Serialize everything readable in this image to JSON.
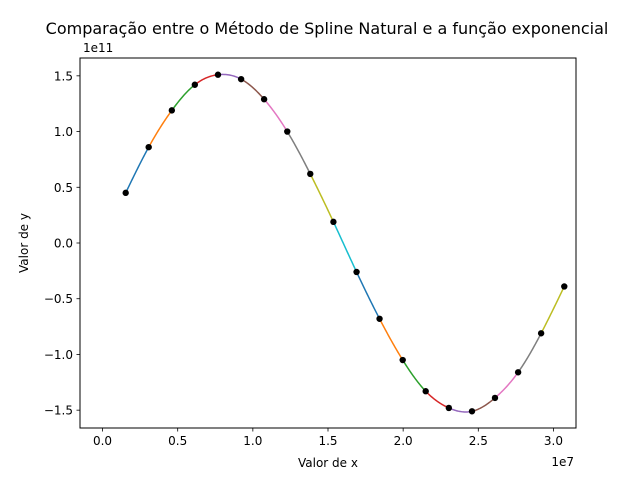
{
  "chart_data": {
    "type": "line",
    "title": "Comparação entre o Método de Spline Natural e a função exponencial",
    "xlabel": "Valor de x",
    "ylabel": "Valor de y",
    "x_offset_text": "1e7",
    "y_offset_text": "1e11",
    "x_scale": 10000000,
    "y_scale": 100000000000,
    "xlim": [
      -0.15,
      3.15
    ],
    "ylim": [
      -1.66,
      1.66
    ],
    "x_ticks": [
      0.0,
      0.5,
      1.0,
      1.5,
      2.0,
      2.5,
      3.0
    ],
    "x_tick_labels": [
      "0.0",
      "0.5",
      "1.0",
      "1.5",
      "2.0",
      "2.5",
      "3.0"
    ],
    "y_ticks": [
      -1.5,
      -1.0,
      -0.5,
      0.0,
      0.5,
      1.0,
      1.5
    ],
    "y_tick_labels": [
      "−1.5",
      "−1.0",
      "−0.5",
      "0.0",
      "0.5",
      "1.0",
      "1.5"
    ],
    "grid": false,
    "legend": "none",
    "segment_colors": [
      "#1f77b4",
      "#ff7f0e",
      "#2ca02c",
      "#d62728",
      "#9467bd",
      "#8c564b",
      "#e377c2",
      "#7f7f7f",
      "#bcbd22",
      "#17becf"
    ],
    "marker_color": "#000000",
    "x": [
      0.154,
      0.307,
      0.461,
      0.614,
      0.768,
      0.922,
      1.075,
      1.229,
      1.382,
      1.536,
      1.69,
      1.843,
      1.997,
      2.15,
      2.304,
      2.458,
      2.611,
      2.765,
      2.918,
      3.072
    ],
    "y": [
      0.45,
      0.86,
      1.19,
      1.42,
      1.51,
      1.47,
      1.29,
      1.0,
      0.62,
      0.19,
      -0.26,
      -0.68,
      -1.05,
      -1.33,
      -1.48,
      -1.51,
      -1.39,
      -1.16,
      -0.81,
      -0.39
    ]
  }
}
